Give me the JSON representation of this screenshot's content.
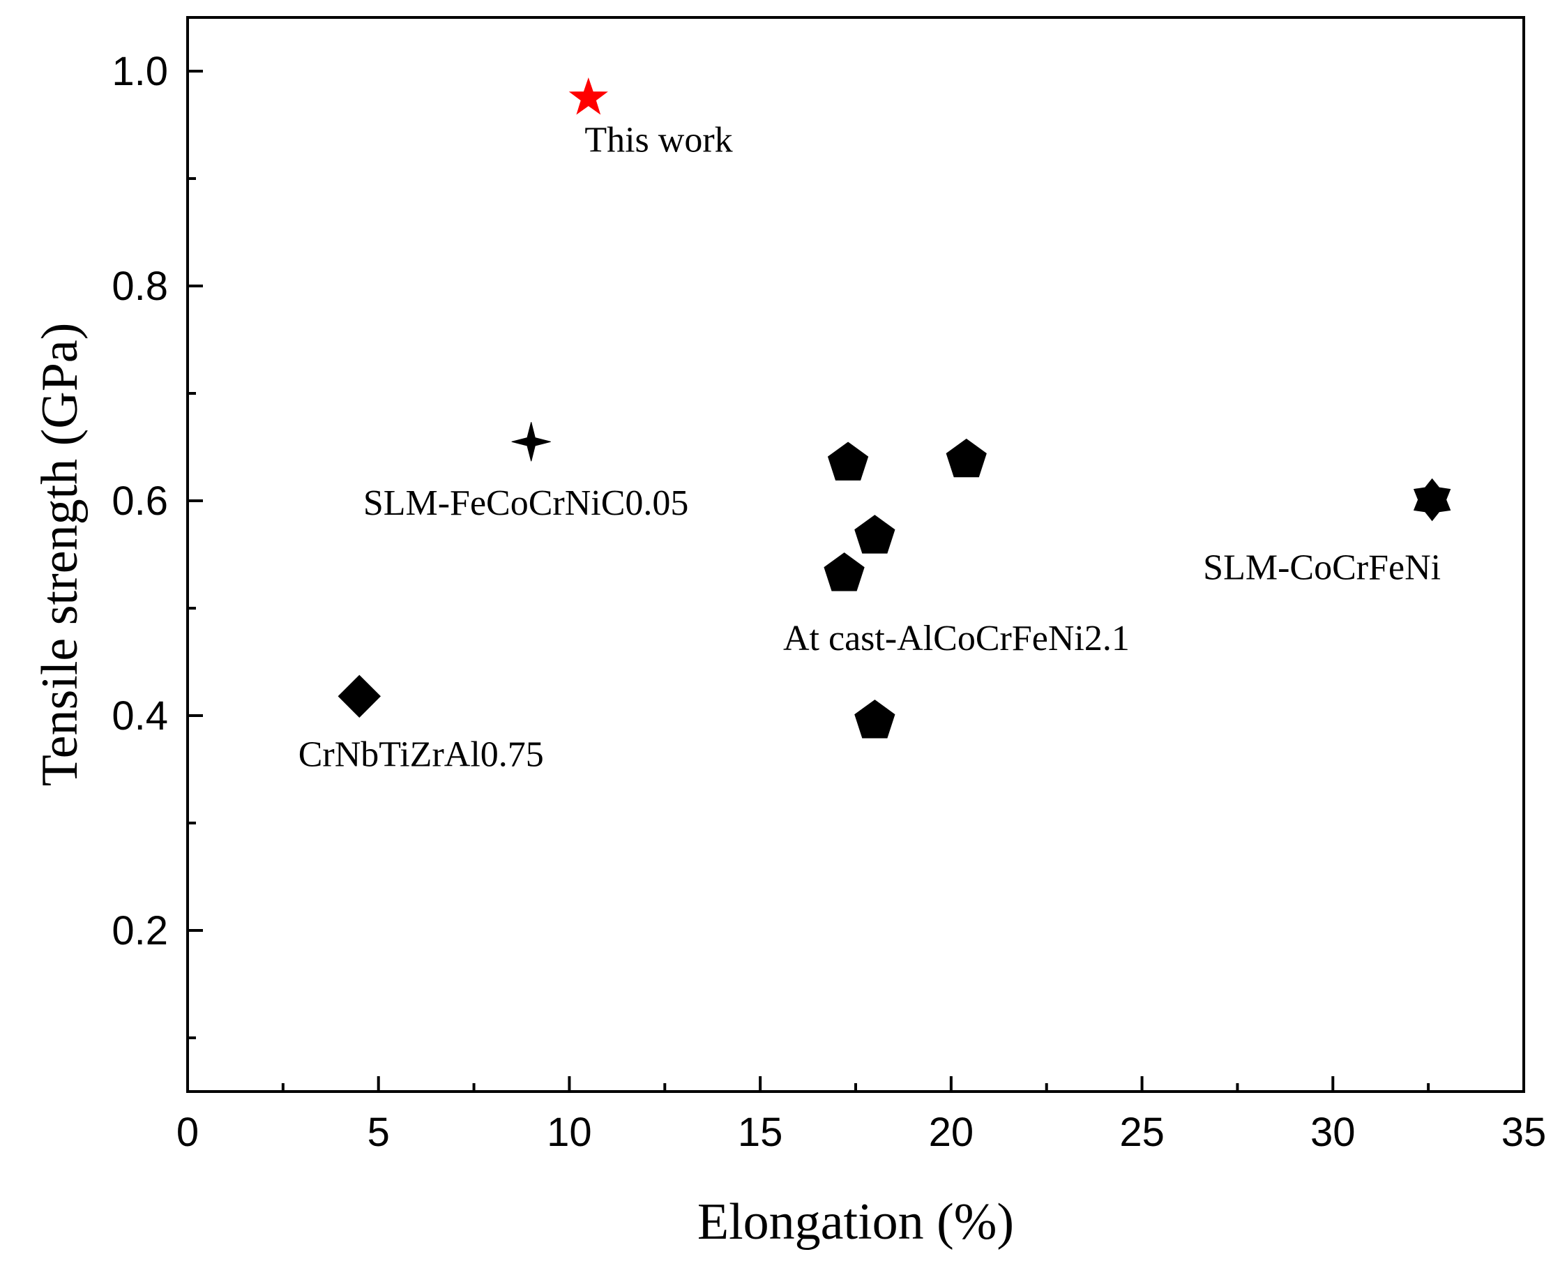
{
  "chart_data": {
    "type": "scatter",
    "title": "",
    "xlabel": "Elongation (%)",
    "ylabel": "Tensile strength (GPa)",
    "xlim": [
      0,
      35
    ],
    "ylim": [
      0.05,
      1.05
    ],
    "xticks": [
      0,
      5,
      10,
      15,
      20,
      25,
      30,
      35
    ],
    "yticks": [
      0.2,
      0.4,
      0.6,
      0.8,
      1.0
    ],
    "xtick_labels": [
      "0",
      "5",
      "10",
      "15",
      "20",
      "25",
      "30",
      "35"
    ],
    "ytick_labels": [
      "0.2",
      "0.4",
      "0.6",
      "0.8",
      "1.0"
    ],
    "grid": false,
    "colors": {
      "highlight": "#ff0000",
      "default": "#000000"
    },
    "series": [
      {
        "name": "This work",
        "marker": "star",
        "color": "#ff0000",
        "points": [
          {
            "x": 10.5,
            "y": 0.975
          }
        ]
      },
      {
        "name": "SLM-FeCoCrNiC0.05",
        "marker": "four-point-star",
        "color": "#000000",
        "points": [
          {
            "x": 9.0,
            "y": 0.655
          }
        ]
      },
      {
        "name": "At cast-AlCoCrFeNi2.1",
        "marker": "pentagon",
        "color": "#000000",
        "points": [
          {
            "x": 17.3,
            "y": 0.635
          },
          {
            "x": 20.4,
            "y": 0.638
          },
          {
            "x": 18.0,
            "y": 0.567
          },
          {
            "x": 17.2,
            "y": 0.532
          },
          {
            "x": 18.0,
            "y": 0.395
          }
        ]
      },
      {
        "name": "SLM-CoCrFeNi",
        "marker": "hexagram",
        "color": "#000000",
        "points": [
          {
            "x": 32.6,
            "y": 0.601
          }
        ]
      },
      {
        "name": "CrNbTiZrAl0.75",
        "marker": "diamond",
        "color": "#000000",
        "points": [
          {
            "x": 4.5,
            "y": 0.418
          }
        ]
      }
    ],
    "annotations": [
      {
        "text": "This work",
        "x": 10.4,
        "y": 0.925,
        "color": "#ff0000"
      },
      {
        "text": "SLM-FeCoCrNiC0.05",
        "x": 4.6,
        "y": 0.587,
        "color": "#000000"
      },
      {
        "text": "SLM-CoCrFeNi",
        "x": 26.6,
        "y": 0.527,
        "color": "#000000"
      },
      {
        "text": "At cast-AlCoCrFeNi2.1",
        "x": 15.6,
        "y": 0.461,
        "color": "#000000"
      },
      {
        "text": "CrNbTiZrAl0.75",
        "x": 2.9,
        "y": 0.353,
        "color": "#000000"
      }
    ]
  }
}
